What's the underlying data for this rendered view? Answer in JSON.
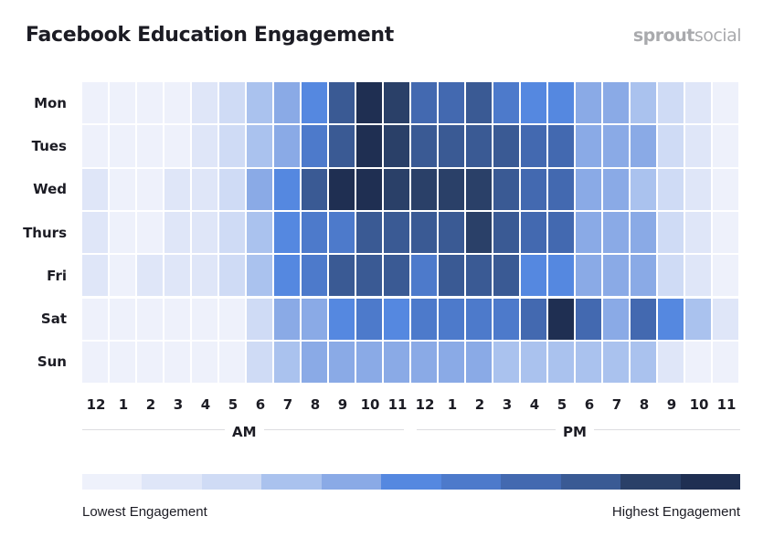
{
  "chart_data": {
    "type": "heatmap",
    "title": "Facebook Education Engagement",
    "rows": [
      "Mon",
      "Tues",
      "Wed",
      "Thurs",
      "Fri",
      "Sat",
      "Sun"
    ],
    "columns": [
      "12",
      "1",
      "2",
      "3",
      "4",
      "5",
      "6",
      "7",
      "8",
      "9",
      "10",
      "11",
      "12",
      "1",
      "2",
      "3",
      "4",
      "5",
      "6",
      "7",
      "8",
      "9",
      "10",
      "11"
    ],
    "column_groups": [
      "AM",
      "PM"
    ],
    "legend": {
      "low_label": "Lowest Engagement",
      "high_label": "Highest Engagement",
      "levels": 11
    },
    "colors": [
      "#eef1fb",
      "#dfe6f8",
      "#cfdbf5",
      "#aac2ee",
      "#8aaae6",
      "#5588e0",
      "#4d7acb",
      "#4369b0",
      "#3a5a94",
      "#2a4068",
      "#1f2f52"
    ],
    "values": [
      [
        0,
        0,
        0,
        0,
        1,
        2,
        3,
        4,
        5,
        8,
        10,
        9,
        7,
        7,
        8,
        6,
        5,
        5,
        4,
        4,
        3,
        2,
        1,
        0
      ],
      [
        0,
        0,
        0,
        0,
        1,
        2,
        3,
        4,
        6,
        8,
        10,
        9,
        8,
        8,
        8,
        8,
        7,
        7,
        4,
        4,
        4,
        2,
        1,
        0
      ],
      [
        1,
        0,
        0,
        1,
        1,
        2,
        4,
        5,
        8,
        10,
        10,
        9,
        9,
        9,
        9,
        8,
        7,
        7,
        4,
        4,
        3,
        2,
        1,
        0
      ],
      [
        1,
        0,
        0,
        1,
        1,
        2,
        3,
        5,
        6,
        6,
        8,
        8,
        8,
        8,
        9,
        8,
        7,
        7,
        4,
        4,
        4,
        2,
        1,
        0
      ],
      [
        1,
        0,
        1,
        1,
        1,
        2,
        3,
        5,
        6,
        8,
        8,
        8,
        6,
        8,
        8,
        8,
        5,
        5,
        4,
        4,
        4,
        2,
        1,
        0
      ],
      [
        0,
        0,
        0,
        0,
        0,
        0,
        2,
        4,
        4,
        5,
        6,
        5,
        6,
        6,
        6,
        6,
        7,
        10,
        7,
        4,
        7,
        5,
        3,
        1
      ],
      [
        0,
        0,
        0,
        0,
        0,
        0,
        2,
        3,
        4,
        4,
        4,
        4,
        4,
        4,
        4,
        3,
        3,
        3,
        3,
        3,
        3,
        1,
        0,
        0
      ]
    ]
  },
  "brand": {
    "logo_text_bold": "sprout",
    "logo_text": "social"
  }
}
